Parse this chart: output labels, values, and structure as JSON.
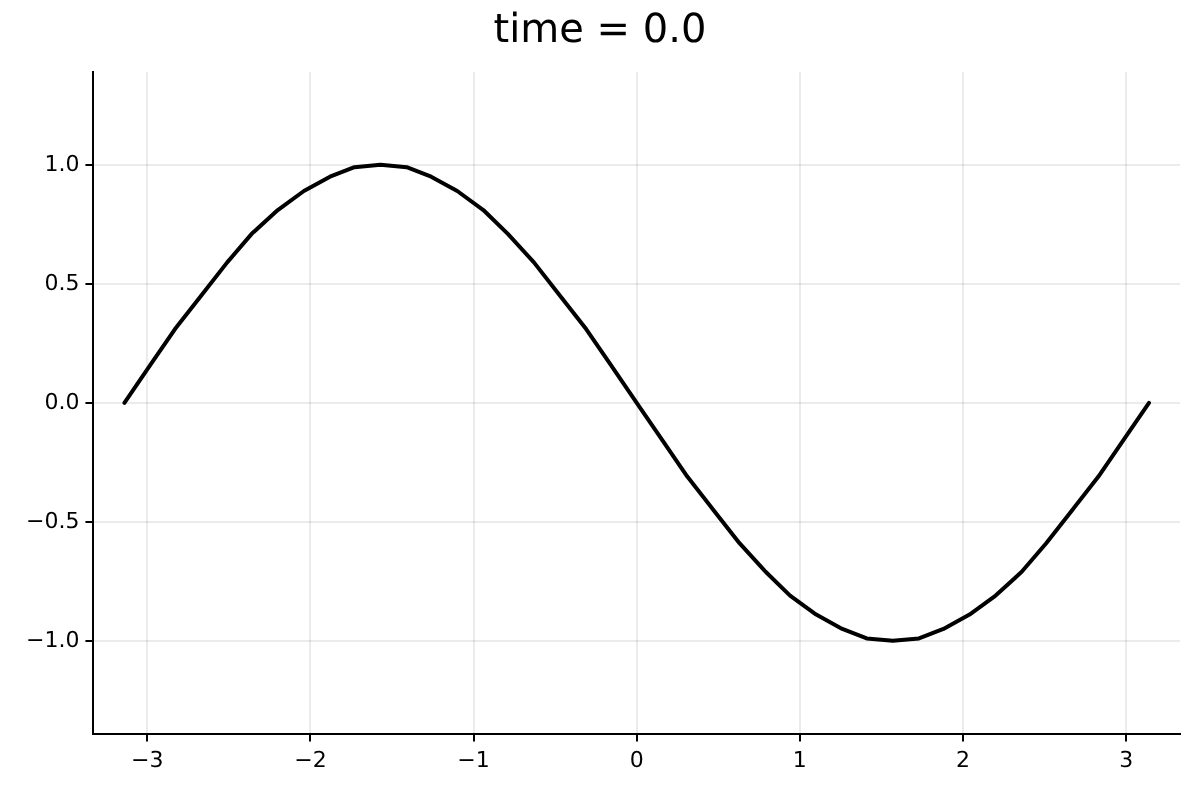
{
  "chart_data": {
    "type": "line",
    "title": "time = 0.0",
    "x": [
      -3.14,
      -2.98,
      -2.83,
      -2.67,
      -2.51,
      -2.36,
      -2.2,
      -2.04,
      -1.88,
      -1.73,
      -1.57,
      -1.41,
      -1.26,
      -1.1,
      -0.94,
      -0.79,
      -0.63,
      -0.47,
      -0.31,
      -0.16,
      0,
      0.16,
      0.31,
      0.47,
      0.63,
      0.79,
      0.94,
      1.1,
      1.26,
      1.41,
      1.57,
      1.73,
      1.88,
      2.04,
      2.2,
      2.36,
      2.51,
      2.67,
      2.83,
      2.98,
      3.14
    ],
    "series": [
      {
        "color": "#000000",
        "values": [
          0,
          0.16,
          0.31,
          0.45,
          0.59,
          0.71,
          0.81,
          0.89,
          0.95,
          0.99,
          1,
          0.99,
          0.95,
          0.89,
          0.81,
          0.71,
          0.59,
          0.45,
          0.31,
          0.16,
          0,
          -0.16,
          -0.31,
          -0.45,
          -0.59,
          -0.71,
          -0.81,
          -0.89,
          -0.95,
          -0.99,
          -1,
          -0.99,
          -0.95,
          -0.89,
          -0.81,
          -0.71,
          -0.59,
          -0.45,
          -0.31,
          -0.16,
          0
        ]
      }
    ],
    "xlim": [
      -3.33,
      3.33
    ],
    "ylim": [
      -1.39,
      1.39
    ],
    "xticks": [
      {
        "value": -3,
        "label": "−3"
      },
      {
        "value": -2,
        "label": "−2"
      },
      {
        "value": -1,
        "label": "−1"
      },
      0,
      1,
      2,
      3
    ],
    "yticks": [
      {
        "value": -1,
        "label": "−1.0"
      },
      {
        "value": -0.5,
        "label": "−0.5"
      },
      {
        "value": 0,
        "label": "0.0"
      },
      {
        "value": 0.5,
        "label": "0.5"
      },
      {
        "value": 1,
        "label": "1.0"
      }
    ],
    "grid": true,
    "legend": false,
    "marker": "none",
    "line_style": "solid"
  }
}
